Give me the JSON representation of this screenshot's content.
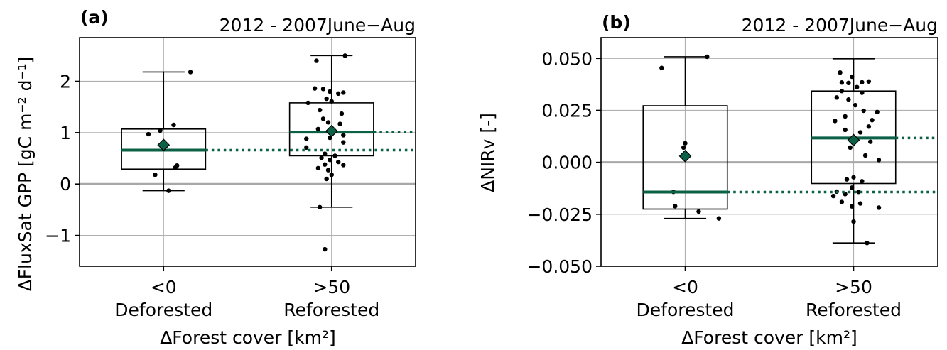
{
  "chart_data": [
    {
      "type": "box",
      "panel_label": "(a)",
      "title": "2012 - 2007June−Aug",
      "xlabel": "ΔForest cover [km²]",
      "ylabel": "ΔFluxSat GPP [gC m⁻² d⁻¹]",
      "ylim": [
        -1.6,
        2.85
      ],
      "yticks": [
        -1,
        0,
        1,
        2
      ],
      "ytick_labels": [
        "−1",
        "0",
        "1",
        "2"
      ],
      "grid": true,
      "zero_line": 0,
      "categories": [
        {
          "tick": "<0",
          "group": "Deforested"
        },
        {
          "tick": ">50",
          "group": "Reforested"
        }
      ],
      "boxes": [
        {
          "whisker_low": -0.13,
          "q1": 0.29,
          "median": 0.66,
          "q3": 1.07,
          "whisker_high": 2.18,
          "mean": 0.76
        },
        {
          "whisker_low": -0.45,
          "q1": 0.55,
          "median": 1.01,
          "q3": 1.58,
          "whisker_high": 2.5,
          "mean": 1.03
        }
      ],
      "points": [
        [
          1.03,
          -0.13
        ],
        [
          0.95,
          0.18
        ],
        [
          0.98,
          1.04
        ],
        [
          0.91,
          0.97
        ],
        [
          1.06,
          1.15
        ],
        [
          1.08,
          0.36
        ],
        [
          1.07,
          0.32
        ],
        [
          1.16,
          2.18
        ],
        [
          1.96,
          -1.27
        ],
        [
          1.93,
          -0.45
        ],
        [
          2.08,
          2.5
        ],
        [
          1.91,
          2.4
        ],
        [
          1.9,
          1.86
        ],
        [
          1.95,
          1.85
        ],
        [
          1.99,
          1.8
        ],
        [
          2.04,
          1.76
        ],
        [
          2.07,
          1.78
        ],
        [
          1.97,
          1.66
        ],
        [
          2.0,
          1.61
        ],
        [
          1.86,
          1.58
        ],
        [
          1.93,
          1.44
        ],
        [
          2.06,
          1.37
        ],
        [
          1.95,
          1.27
        ],
        [
          1.98,
          1.2
        ],
        [
          2.05,
          1.17
        ],
        [
          1.92,
          1.07
        ],
        [
          2.01,
          1.05
        ],
        [
          2.07,
          0.95
        ],
        [
          1.99,
          0.9
        ],
        [
          1.85,
          0.88
        ],
        [
          2.07,
          0.81
        ],
        [
          1.85,
          0.71
        ],
        [
          1.96,
          0.59
        ],
        [
          2.02,
          0.55
        ],
        [
          1.94,
          0.51
        ],
        [
          1.99,
          0.47
        ],
        [
          2.04,
          0.43
        ],
        [
          1.96,
          0.38
        ],
        [
          2.07,
          0.37
        ],
        [
          1.92,
          0.31
        ],
        [
          1.98,
          0.27
        ],
        [
          2.0,
          0.18
        ],
        [
          1.97,
          0.1
        ]
      ],
      "colors": {
        "accent": "#0b6146",
        "points": "#000000",
        "grid": "#b0b0b0",
        "zero": "#a8a8a8"
      }
    },
    {
      "type": "box",
      "panel_label": "(b)",
      "title": "2012 - 2007June−Aug",
      "xlabel": "ΔForest cover [km²]",
      "ylabel": "ΔNIRv [-]",
      "ylim": [
        -0.05,
        0.06
      ],
      "yticks": [
        -0.05,
        -0.025,
        0,
        0.025,
        0.05
      ],
      "ytick_labels": [
        "−0.050",
        "−0.025",
        "0.000",
        "0.025",
        "0.050"
      ],
      "grid": true,
      "zero_line": 0,
      "categories": [
        {
          "tick": "<0",
          "group": "Deforested"
        },
        {
          "tick": ">50",
          "group": "Reforested"
        }
      ],
      "boxes": [
        {
          "whisker_low": -0.027,
          "q1": -0.0225,
          "median": -0.0143,
          "q3": 0.0272,
          "whisker_high": 0.0508,
          "mean": 0.003
        },
        {
          "whisker_low": -0.0388,
          "q1": -0.0102,
          "median": 0.0117,
          "q3": 0.0343,
          "whisker_high": 0.0498,
          "mean": 0.0107
        }
      ],
      "points": [
        [
          0.86,
          0.0454
        ],
        [
          1.13,
          0.0508
        ],
        [
          1.0,
          0.0092
        ],
        [
          0.99,
          0.0071
        ],
        [
          0.93,
          -0.0142
        ],
        [
          0.94,
          -0.0211
        ],
        [
          1.08,
          -0.0237
        ],
        [
          1.2,
          -0.027
        ],
        [
          1.92,
          0.0432
        ],
        [
          1.99,
          0.0412
        ],
        [
          2.09,
          0.0389
        ],
        [
          1.93,
          0.0384
        ],
        [
          1.97,
          0.0382
        ],
        [
          2.05,
          0.0385
        ],
        [
          2.02,
          0.0362
        ],
        [
          1.93,
          0.0343
        ],
        [
          1.9,
          0.0312
        ],
        [
          2.05,
          0.0335
        ],
        [
          1.97,
          0.0302
        ],
        [
          2.01,
          0.0275
        ],
        [
          2.06,
          0.0248
        ],
        [
          2.14,
          0.0242
        ],
        [
          1.95,
          0.0221
        ],
        [
          2.11,
          0.0203
        ],
        [
          1.89,
          0.0199
        ],
        [
          2.09,
          0.0172
        ],
        [
          1.95,
          0.0156
        ],
        [
          2.04,
          0.0144
        ],
        [
          2.1,
          0.0099
        ],
        [
          1.98,
          0.0071
        ],
        [
          2.07,
          0.0033
        ],
        [
          2.15,
          0.0011
        ],
        [
          1.96,
          -0.0082
        ],
        [
          2.0,
          -0.0072
        ],
        [
          2.05,
          -0.0091
        ],
        [
          1.99,
          -0.0122
        ],
        [
          1.9,
          -0.0141
        ],
        [
          1.95,
          -0.0153
        ],
        [
          2.03,
          -0.0142
        ],
        [
          1.88,
          -0.0162
        ],
        [
          1.93,
          -0.0191
        ],
        [
          1.99,
          -0.0212
        ],
        [
          2.04,
          -0.0198
        ],
        [
          2.15,
          -0.0218
        ],
        [
          2.0,
          -0.0285
        ],
        [
          2.08,
          -0.0388
        ]
      ],
      "colors": {
        "accent": "#0b6146",
        "points": "#000000",
        "grid": "#b0b0b0",
        "zero": "#a8a8a8"
      }
    }
  ]
}
